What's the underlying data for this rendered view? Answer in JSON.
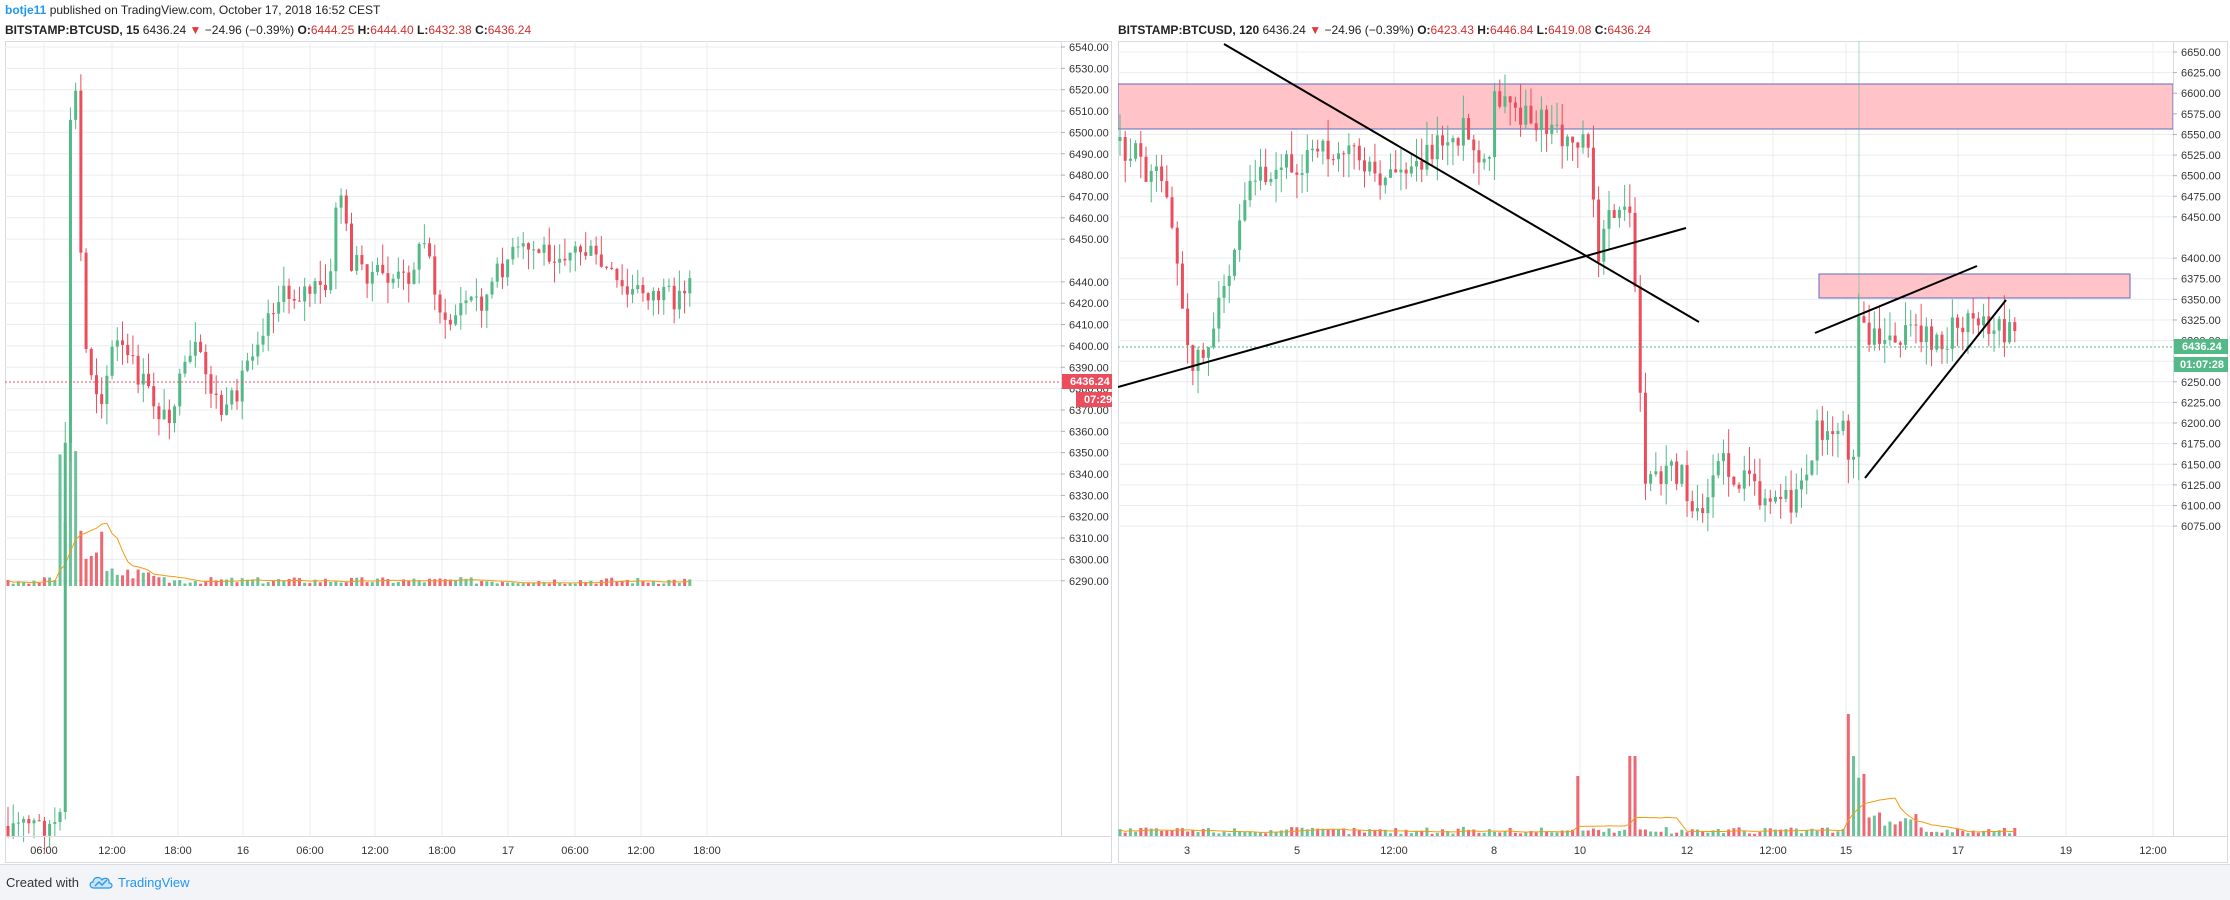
{
  "header": {
    "author": "botje11",
    "published": " published on TradingView.com, October 17, 2018 16:52 CEST"
  },
  "colors": {
    "up": "#53b987",
    "down": "#eb4d5c",
    "grid": "#e8ecf1",
    "ma": "#f39c12",
    "zone_fill": "#ffc3c8",
    "zone_border": "#5c6bc0"
  },
  "left_chart": {
    "symbol": "BITSTAMP:BTCUSD, 15",
    "last": "6436.24",
    "change": "−24.96 (−0.39%)",
    "o_label": "O:",
    "o": "6444.25",
    "h_label": "H:",
    "h": "6444.40",
    "l_label": "L:",
    "l": "6432.38",
    "c_label": "C:",
    "c": "6436.24",
    "price_tag": "6436.24",
    "time_tag": "07:29",
    "price_labels": [
      "6540.00",
      "6530.00",
      "6520.00",
      "6510.00",
      "6500.00",
      "6490.00",
      "6480.00",
      "6470.00",
      "6460.00",
      "6450.00",
      "6440.00",
      "6420.00",
      "6410.00",
      "6400.00",
      "6390.00",
      "6380.00",
      "6370.00",
      "6360.00",
      "6350.00",
      "6340.00",
      "6330.00",
      "6320.00",
      "6310.00",
      "6300.00",
      "6290.00"
    ],
    "time_labels": [
      "06:00",
      "12:00",
      "18:00",
      "16",
      "06:00",
      "12:00",
      "18:00",
      "17",
      "06:00",
      "12:00",
      "18:00"
    ]
  },
  "right_chart": {
    "symbol": "BITSTAMP:BTCUSD, 120",
    "last": "6436.24",
    "change": "−24.96 (−0.39%)",
    "o_label": "O:",
    "o": "6423.43",
    "h_label": "H:",
    "h": "6446.84",
    "l_label": "L:",
    "l": "6419.08",
    "c_label": "C:",
    "c": "6436.24",
    "price_tag": "6436.24",
    "time_tag": "01:07:28",
    "price_labels": [
      "6650.00",
      "6625.00",
      "6600.00",
      "6575.00",
      "6550.00",
      "6525.00",
      "6500.00",
      "6475.00",
      "6450.00",
      "6400.00",
      "6375.00",
      "6350.00",
      "6325.00",
      "6300.00",
      "6275.00",
      "6250.00",
      "6225.00",
      "6200.00",
      "6175.00",
      "6150.00",
      "6125.00",
      "6100.00",
      "6075.00"
    ],
    "time_labels": [
      "3",
      "5",
      "12:00",
      "8",
      "10",
      "12",
      "12:00",
      "15",
      "17",
      "19",
      "12:00"
    ]
  },
  "footer": {
    "created_with": "Created with",
    "brand": "TradingView",
    "logo_icon": "tradingview-cloud-icon"
  }
}
